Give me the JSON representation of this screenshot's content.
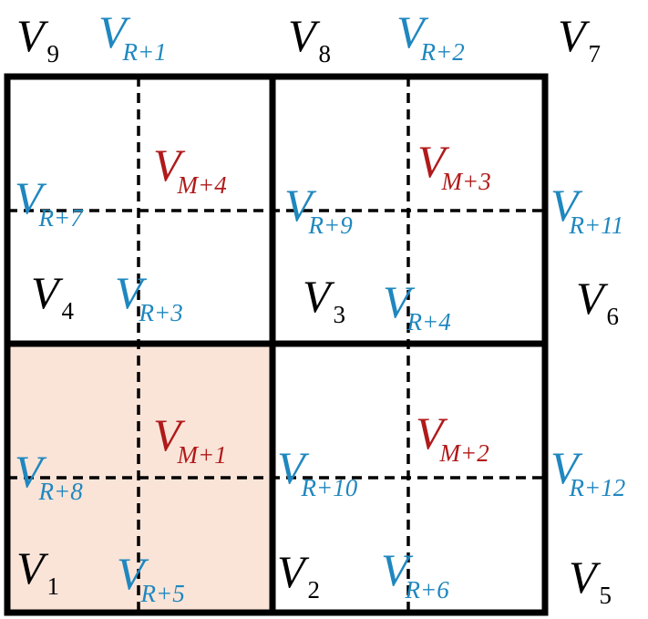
{
  "colors": {
    "black": "#000000",
    "blue": "#1F87BF",
    "red": "#B01A1A",
    "highlight_fill": "#FAE4D8"
  },
  "labels": {
    "v9": {
      "main": "V",
      "sub": "9",
      "color": "black"
    },
    "vr1": {
      "main": "V",
      "sub": "R+1",
      "color": "blue"
    },
    "v8": {
      "main": "V",
      "sub": "8",
      "color": "black"
    },
    "vr2": {
      "main": "V",
      "sub": "R+2",
      "color": "blue"
    },
    "v7": {
      "main": "V",
      "sub": "7",
      "color": "black"
    },
    "vm4": {
      "main": "V",
      "sub": "M+4",
      "color": "red"
    },
    "vm3": {
      "main": "V",
      "sub": "M+3",
      "color": "red"
    },
    "vr7": {
      "main": "V",
      "sub": "R+7",
      "color": "blue"
    },
    "vr9": {
      "main": "V",
      "sub": "R+9",
      "color": "blue"
    },
    "vr11": {
      "main": "V",
      "sub": "R+11",
      "color": "blue"
    },
    "v4": {
      "main": "V",
      "sub": "4",
      "color": "black"
    },
    "vr3": {
      "main": "V",
      "sub": "R+3",
      "color": "blue"
    },
    "v3": {
      "main": "V",
      "sub": "3",
      "color": "black"
    },
    "vr4": {
      "main": "V",
      "sub": "R+4",
      "color": "blue"
    },
    "v6": {
      "main": "V",
      "sub": "6",
      "color": "black"
    },
    "vm1": {
      "main": "V",
      "sub": "M+1",
      "color": "red"
    },
    "vm2": {
      "main": "V",
      "sub": "M+2",
      "color": "red"
    },
    "vr8": {
      "main": "V",
      "sub": "R+8",
      "color": "blue"
    },
    "vr10": {
      "main": "V",
      "sub": "R+10",
      "color": "blue"
    },
    "vr12": {
      "main": "V",
      "sub": "R+12",
      "color": "blue"
    },
    "v1": {
      "main": "V",
      "sub": "1",
      "color": "black"
    },
    "vr5": {
      "main": "V",
      "sub": "R+5",
      "color": "blue"
    },
    "v2": {
      "main": "V",
      "sub": "2",
      "color": "black"
    },
    "vr6": {
      "main": "V",
      "sub": "R+6",
      "color": "blue"
    },
    "v5": {
      "main": "V",
      "sub": "5",
      "color": "black"
    }
  }
}
